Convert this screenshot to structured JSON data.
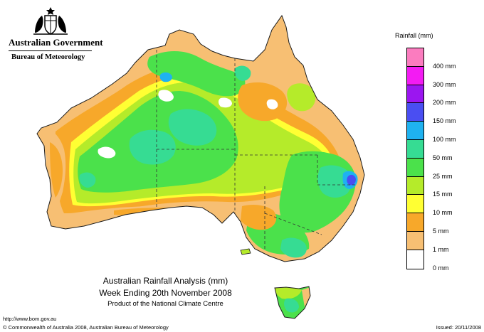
{
  "header": {
    "government": "Australian Government",
    "bureau": "Bureau of Meteorology"
  },
  "map": {
    "title_line1": "Australian Rainfall Analysis (mm)",
    "title_line2": "Week Ending 20th November 2008",
    "title_line3": "Product of the National Climate Centre",
    "colors": {
      "none": "#ffffff",
      "r1": "#f7bf73",
      "r5": "#f7a82a",
      "r10": "#ffff33",
      "r15": "#b5eb2a",
      "r25": "#4be14b",
      "r50": "#36dc93",
      "r100": "#1fb2f0",
      "r150": "#4a4ef2",
      "r200": "#9b16f0",
      "r300": "#f31bf3",
      "r400": "#fb7cbf"
    }
  },
  "legend": {
    "title": "Rainfall (mm)",
    "items": [
      {
        "label": "",
        "color": "#fb7cbf"
      },
      {
        "label": "400 mm",
        "color": "#f31bf3"
      },
      {
        "label": "300 mm",
        "color": "#9b16f0"
      },
      {
        "label": "200 mm",
        "color": "#4a4ef2"
      },
      {
        "label": "150 mm",
        "color": "#1fb2f0"
      },
      {
        "label": "100 mm",
        "color": "#36dc93"
      },
      {
        "label": "50 mm",
        "color": "#4be14b"
      },
      {
        "label": "25 mm",
        "color": "#b5eb2a"
      },
      {
        "label": "15 mm",
        "color": "#ffff33"
      },
      {
        "label": "10 mm",
        "color": "#f7a82a"
      },
      {
        "label": "5 mm",
        "color": "#f7bf73"
      },
      {
        "label": "1 mm",
        "color": "#ffffff"
      },
      {
        "label": "0 mm",
        "color": ""
      }
    ]
  },
  "footer": {
    "url": "http://www.bom.gov.au",
    "copyright": "© Commonwealth of Australia 2008, Australian Bureau of Meteorology",
    "issued": "Issued: 20/11/2008"
  }
}
